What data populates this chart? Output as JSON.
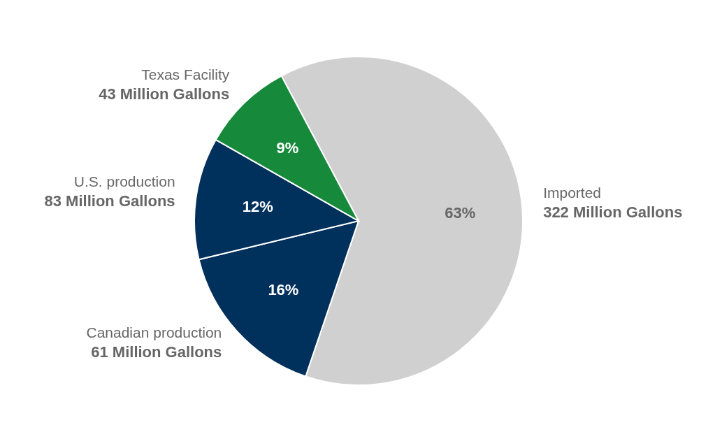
{
  "chart_data": {
    "type": "pie",
    "categories": [
      "Imported",
      "Canadian production",
      "U.S. production",
      "Texas Facility"
    ],
    "values": [
      63,
      16,
      12,
      9
    ],
    "value_labels": [
      "63%",
      "16%",
      "12%",
      "9%"
    ],
    "colors": [
      "#d0d0d0",
      "#00305c",
      "#00305c",
      "#168a3a"
    ],
    "annotations": [
      "322 Million Gallons",
      "61 Million Gallons",
      "83 Million Gallons",
      "43 Million Gallons"
    ]
  }
}
